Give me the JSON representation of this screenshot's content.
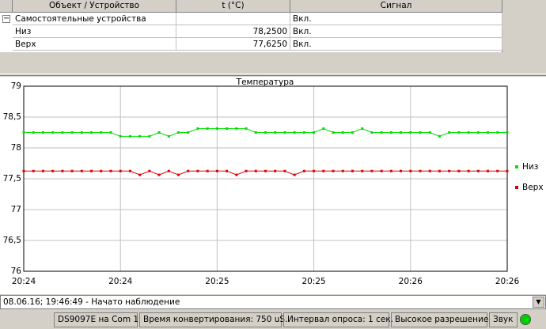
{
  "table": {
    "columns": [
      "Объект / Устройство",
      "t (°C)",
      "Сигнал"
    ],
    "group": {
      "name": "Самостоятельные устройства",
      "signal": "Вкл."
    },
    "rows": [
      {
        "name": "Низ",
        "t": "78,2500",
        "signal": "Вкл."
      },
      {
        "name": "Верх",
        "t": "77,6250",
        "signal": "Вкл."
      }
    ]
  },
  "chart_data": {
    "type": "line",
    "title": "Температура",
    "categories": [
      "20:24",
      null,
      null,
      null,
      null,
      null,
      null,
      null,
      null,
      null,
      "20:24",
      null,
      null,
      null,
      null,
      null,
      null,
      null,
      null,
      null,
      "20:25",
      null,
      null,
      null,
      null,
      null,
      null,
      null,
      null,
      null,
      "20:25",
      null,
      null,
      null,
      null,
      null,
      null,
      null,
      null,
      null,
      "20:26",
      null,
      null,
      null,
      null,
      null,
      null,
      null,
      null,
      null,
      "20:26"
    ],
    "series": [
      {
        "name": "Низ",
        "color": "#00e000",
        "values": [
          78.25,
          78.25,
          78.25,
          78.25,
          78.25,
          78.25,
          78.25,
          78.25,
          78.25,
          78.25,
          78.1875,
          78.1875,
          78.1875,
          78.1875,
          78.25,
          78.1875,
          78.25,
          78.25,
          78.3125,
          78.3125,
          78.3125,
          78.3125,
          78.3125,
          78.3125,
          78.25,
          78.25,
          78.25,
          78.25,
          78.25,
          78.25,
          78.25,
          78.3125,
          78.25,
          78.25,
          78.25,
          78.3125,
          78.25,
          78.25,
          78.25,
          78.25,
          78.25,
          78.25,
          78.25,
          78.1875,
          78.25,
          78.25,
          78.25,
          78.25,
          78.25,
          78.25,
          78.25
        ]
      },
      {
        "name": "Верх",
        "color": "#e00000",
        "values": [
          77.625,
          77.625,
          77.625,
          77.625,
          77.625,
          77.625,
          77.625,
          77.625,
          77.625,
          77.625,
          77.625,
          77.625,
          77.5625,
          77.625,
          77.5625,
          77.625,
          77.5625,
          77.625,
          77.625,
          77.625,
          77.625,
          77.625,
          77.5625,
          77.625,
          77.625,
          77.625,
          77.625,
          77.625,
          77.5625,
          77.625,
          77.625,
          77.625,
          77.625,
          77.625,
          77.625,
          77.625,
          77.625,
          77.625,
          77.625,
          77.625,
          77.625,
          77.625,
          77.625,
          77.625,
          77.625,
          77.625,
          77.625,
          77.625,
          77.625,
          77.625,
          77.625
        ]
      }
    ],
    "ylim": [
      76,
      79
    ],
    "yticks": [
      76,
      {
        "value": 76.5,
        "label": "76,5"
      },
      77,
      {
        "value": 77.5,
        "label": "77,5"
      },
      78,
      {
        "value": 78.5,
        "label": "78,5"
      },
      79
    ],
    "grid": true,
    "legend": "right"
  },
  "log": "08.06.16; 19:46:49 - Начато наблюдение",
  "status": [
    "DS9097E на Com 1",
    "Время конвертирования: 750 uS.",
    "Интервал опроса: 1 сек.",
    "Высокое разрешение",
    "Звук"
  ]
}
